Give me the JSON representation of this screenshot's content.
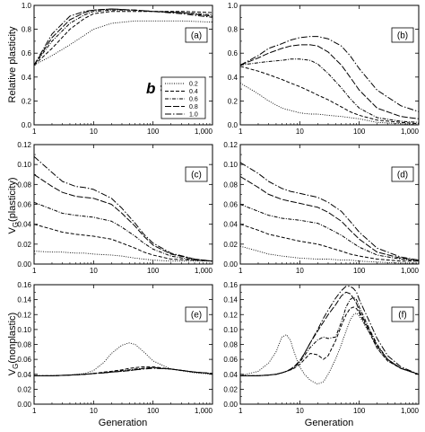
{
  "figure": {
    "legend_symbol": "b =",
    "legend_location": "panel (a), right of the (b) label",
    "axis_labels": {
      "row0_ylabel": "Relative plasticity",
      "row1_ylabel": "V_G(plasticity)",
      "row1_ylabel_main": "V",
      "row1_ylabel_sub": "G",
      "row1_ylabel_rest": "(plasticity)",
      "row2_ylabel": "V_G(nonplastic)",
      "row2_ylabel_main": "V",
      "row2_ylabel_sub": "G",
      "row2_ylabel_rest": "(nonplastic)",
      "xlabel": "Generation"
    }
  },
  "chart_data": [
    {
      "type": "line",
      "panel": "(a)",
      "xscale": "log",
      "xlim": [
        1,
        1000
      ],
      "ylim": [
        0,
        1.0
      ],
      "xticks": [
        "1",
        "10",
        "100",
        "1,000"
      ],
      "yticks": [
        "0.0",
        "0.2",
        "0.4",
        "0.6",
        "0.8",
        "1.0"
      ],
      "ylabel": "Relative plasticity",
      "xlabel": "",
      "x": [
        1,
        2,
        4,
        7,
        10,
        20,
        50,
        100,
        300,
        1000
      ],
      "series": [
        {
          "name": "0.2",
          "values": [
            0.5,
            0.58,
            0.67,
            0.75,
            0.8,
            0.85,
            0.87,
            0.87,
            0.87,
            0.86
          ]
        },
        {
          "name": "0.4",
          "values": [
            0.5,
            0.64,
            0.8,
            0.89,
            0.93,
            0.95,
            0.95,
            0.95,
            0.95,
            0.94
          ]
        },
        {
          "name": "0.6",
          "values": [
            0.5,
            0.7,
            0.85,
            0.92,
            0.95,
            0.96,
            0.96,
            0.95,
            0.94,
            0.92
          ]
        },
        {
          "name": "0.8",
          "values": [
            0.5,
            0.73,
            0.88,
            0.94,
            0.96,
            0.97,
            0.96,
            0.95,
            0.94,
            0.91
          ]
        },
        {
          "name": "1.0",
          "values": [
            0.5,
            0.76,
            0.91,
            0.95,
            0.96,
            0.97,
            0.96,
            0.95,
            0.93,
            0.9
          ]
        }
      ]
    },
    {
      "type": "line",
      "panel": "(b)",
      "xscale": "log",
      "xlim": [
        1,
        1000
      ],
      "ylim": [
        0,
        1.0
      ],
      "xticks": [
        "1",
        "10",
        "100",
        "1,000"
      ],
      "yticks": [
        "0.0",
        "0.2",
        "0.4",
        "0.6",
        "0.8",
        "1.0"
      ],
      "ylabel": "",
      "xlabel": "",
      "x": [
        1,
        2,
        3,
        5,
        7,
        10,
        15,
        20,
        30,
        50,
        70,
        100,
        200,
        500,
        1000
      ],
      "series": [
        {
          "name": "0.2",
          "values": [
            0.35,
            0.26,
            0.2,
            0.14,
            0.12,
            0.1,
            0.09,
            0.09,
            0.08,
            0.07,
            0.06,
            0.05,
            0.02,
            0.01,
            0.0
          ]
        },
        {
          "name": "0.4",
          "values": [
            0.49,
            0.45,
            0.42,
            0.38,
            0.35,
            0.32,
            0.28,
            0.25,
            0.21,
            0.15,
            0.11,
            0.08,
            0.04,
            0.02,
            0.01
          ]
        },
        {
          "name": "0.6",
          "values": [
            0.5,
            0.52,
            0.53,
            0.54,
            0.55,
            0.55,
            0.54,
            0.51,
            0.43,
            0.31,
            0.22,
            0.14,
            0.06,
            0.03,
            0.02
          ]
        },
        {
          "name": "0.8",
          "values": [
            0.5,
            0.56,
            0.6,
            0.64,
            0.66,
            0.67,
            0.67,
            0.66,
            0.61,
            0.5,
            0.4,
            0.29,
            0.14,
            0.07,
            0.05
          ]
        },
        {
          "name": "1.0",
          "values": [
            0.5,
            0.58,
            0.64,
            0.68,
            0.71,
            0.73,
            0.74,
            0.74,
            0.72,
            0.66,
            0.58,
            0.47,
            0.29,
            0.16,
            0.11
          ]
        }
      ]
    },
    {
      "type": "line",
      "panel": "(c)",
      "xscale": "log",
      "xlim": [
        1,
        1000
      ],
      "ylim": [
        0,
        0.12
      ],
      "xticks": [
        "1",
        "10",
        "100",
        "1,000"
      ],
      "yticks": [
        "0.00",
        "0.02",
        "0.04",
        "0.06",
        "0.08",
        "0.10",
        "0.12"
      ],
      "ylabel": "V_G(plasticity)",
      "xlabel": "",
      "x": [
        1,
        2,
        3,
        5,
        7,
        10,
        20,
        30,
        50,
        70,
        100,
        200,
        500,
        1000
      ],
      "series": [
        {
          "name": "0.2",
          "values": [
            0.013,
            0.012,
            0.012,
            0.011,
            0.011,
            0.01,
            0.009,
            0.008,
            0.006,
            0.005,
            0.004,
            0.003,
            0.003,
            0.003
          ]
        },
        {
          "name": "0.4",
          "values": [
            0.04,
            0.035,
            0.032,
            0.03,
            0.029,
            0.028,
            0.025,
            0.021,
            0.016,
            0.012,
            0.009,
            0.005,
            0.004,
            0.003
          ]
        },
        {
          "name": "0.6",
          "values": [
            0.062,
            0.055,
            0.051,
            0.049,
            0.048,
            0.047,
            0.043,
            0.037,
            0.028,
            0.021,
            0.015,
            0.008,
            0.004,
            0.003
          ]
        },
        {
          "name": "0.8",
          "values": [
            0.09,
            0.078,
            0.072,
            0.068,
            0.067,
            0.066,
            0.06,
            0.051,
            0.038,
            0.028,
            0.019,
            0.01,
            0.005,
            0.003
          ]
        },
        {
          "name": "1.0",
          "values": [
            0.108,
            0.092,
            0.083,
            0.078,
            0.077,
            0.075,
            0.066,
            0.056,
            0.041,
            0.03,
            0.021,
            0.011,
            0.005,
            0.003
          ]
        }
      ]
    },
    {
      "type": "line",
      "panel": "(d)",
      "xscale": "log",
      "xlim": [
        1,
        1000
      ],
      "ylim": [
        0,
        0.12
      ],
      "xticks": [
        "1",
        "10",
        "100",
        "1,000"
      ],
      "yticks": [
        "0.00",
        "0.02",
        "0.04",
        "0.06",
        "0.08",
        "0.10",
        "0.12"
      ],
      "ylabel": "",
      "xlabel": "",
      "x": [
        1,
        2,
        3,
        5,
        7,
        10,
        20,
        30,
        50,
        70,
        100,
        200,
        500,
        1000
      ],
      "series": [
        {
          "name": "0.2",
          "values": [
            0.018,
            0.013,
            0.01,
            0.008,
            0.007,
            0.006,
            0.005,
            0.005,
            0.004,
            0.004,
            0.003,
            0.002,
            0.001,
            0.001
          ]
        },
        {
          "name": "0.4",
          "values": [
            0.04,
            0.034,
            0.03,
            0.027,
            0.025,
            0.023,
            0.02,
            0.017,
            0.013,
            0.01,
            0.008,
            0.005,
            0.003,
            0.003
          ]
        },
        {
          "name": "0.6",
          "values": [
            0.06,
            0.053,
            0.049,
            0.046,
            0.045,
            0.044,
            0.041,
            0.036,
            0.029,
            0.023,
            0.017,
            0.009,
            0.005,
            0.003
          ]
        },
        {
          "name": "0.8",
          "values": [
            0.088,
            0.077,
            0.07,
            0.065,
            0.063,
            0.061,
            0.057,
            0.052,
            0.043,
            0.034,
            0.025,
            0.012,
            0.006,
            0.004
          ]
        },
        {
          "name": "1.0",
          "values": [
            0.102,
            0.091,
            0.083,
            0.076,
            0.073,
            0.071,
            0.067,
            0.062,
            0.053,
            0.043,
            0.032,
            0.016,
            0.007,
            0.004
          ]
        }
      ]
    },
    {
      "type": "line",
      "panel": "(e)",
      "xscale": "log",
      "xlim": [
        1,
        1000
      ],
      "ylim": [
        0,
        0.16
      ],
      "xticks": [
        "1",
        "10",
        "100",
        "1,000"
      ],
      "yticks": [
        "0.00",
        "0.02",
        "0.04",
        "0.06",
        "0.08",
        "0.10",
        "0.12",
        "0.14",
        "0.16"
      ],
      "ylabel": "V_G(nonplastic)",
      "xlabel": "Generation",
      "x": [
        1,
        2,
        4,
        7,
        10,
        15,
        20,
        30,
        40,
        50,
        70,
        100,
        200,
        500,
        1000
      ],
      "series": [
        {
          "name": "0.2",
          "values": [
            0.038,
            0.038,
            0.039,
            0.041,
            0.045,
            0.056,
            0.068,
            0.079,
            0.082,
            0.08,
            0.07,
            0.058,
            0.047,
            0.042,
            0.04
          ]
        },
        {
          "name": "0.4",
          "values": [
            0.038,
            0.038,
            0.039,
            0.04,
            0.041,
            0.043,
            0.044,
            0.046,
            0.048,
            0.049,
            0.05,
            0.05,
            0.047,
            0.043,
            0.041
          ]
        },
        {
          "name": "0.6",
          "values": [
            0.038,
            0.038,
            0.039,
            0.04,
            0.041,
            0.042,
            0.043,
            0.045,
            0.046,
            0.047,
            0.048,
            0.049,
            0.047,
            0.043,
            0.041
          ]
        },
        {
          "name": "0.8",
          "values": [
            0.038,
            0.038,
            0.039,
            0.04,
            0.041,
            0.042,
            0.043,
            0.044,
            0.045,
            0.046,
            0.048,
            0.049,
            0.047,
            0.043,
            0.041
          ]
        },
        {
          "name": "1.0",
          "values": [
            0.038,
            0.038,
            0.039,
            0.04,
            0.041,
            0.042,
            0.043,
            0.044,
            0.045,
            0.046,
            0.047,
            0.048,
            0.047,
            0.043,
            0.041
          ]
        }
      ]
    },
    {
      "type": "line",
      "panel": "(f)",
      "xscale": "log",
      "xlim": [
        1,
        1000
      ],
      "ylim": [
        0,
        0.16
      ],
      "xticks": [
        "1",
        "10",
        "100",
        "1,000"
      ],
      "yticks": [
        "0.00",
        "0.02",
        "0.04",
        "0.06",
        "0.08",
        "0.10",
        "0.12",
        "0.14",
        "0.16"
      ],
      "ylabel": "",
      "xlabel": "Generation",
      "x": [
        1,
        2,
        3,
        4,
        5,
        6,
        7,
        8,
        10,
        12,
        15,
        20,
        25,
        30,
        40,
        50,
        60,
        70,
        80,
        90,
        100,
        150,
        200,
        300,
        500,
        1000
      ],
      "series": [
        {
          "name": "0.2",
          "values": [
            0.038,
            0.044,
            0.055,
            0.07,
            0.09,
            0.093,
            0.085,
            0.07,
            0.05,
            0.04,
            0.032,
            0.027,
            0.03,
            0.04,
            0.06,
            0.08,
            0.098,
            0.112,
            0.12,
            0.122,
            0.118,
            0.095,
            0.075,
            0.058,
            0.048,
            0.04
          ]
        },
        {
          "name": "0.4",
          "values": [
            0.038,
            0.038,
            0.039,
            0.04,
            0.042,
            0.044,
            0.046,
            0.048,
            0.053,
            0.06,
            0.068,
            0.066,
            0.06,
            0.065,
            0.085,
            0.105,
            0.12,
            0.128,
            0.13,
            0.128,
            0.122,
            0.095,
            0.075,
            0.058,
            0.048,
            0.04
          ]
        },
        {
          "name": "0.6",
          "values": [
            0.038,
            0.038,
            0.039,
            0.04,
            0.042,
            0.044,
            0.046,
            0.049,
            0.056,
            0.065,
            0.076,
            0.086,
            0.09,
            0.088,
            0.09,
            0.11,
            0.13,
            0.14,
            0.143,
            0.14,
            0.13,
            0.1,
            0.08,
            0.06,
            0.048,
            0.04
          ]
        },
        {
          "name": "0.8",
          "values": [
            0.038,
            0.038,
            0.039,
            0.04,
            0.042,
            0.044,
            0.047,
            0.05,
            0.058,
            0.068,
            0.082,
            0.098,
            0.11,
            0.12,
            0.133,
            0.145,
            0.15,
            0.148,
            0.142,
            0.135,
            0.125,
            0.098,
            0.078,
            0.06,
            0.048,
            0.04
          ]
        },
        {
          "name": "1.0",
          "values": [
            0.038,
            0.038,
            0.039,
            0.04,
            0.042,
            0.044,
            0.047,
            0.05,
            0.058,
            0.068,
            0.082,
            0.1,
            0.115,
            0.126,
            0.142,
            0.152,
            0.158,
            0.158,
            0.155,
            0.15,
            0.14,
            0.11,
            0.088,
            0.065,
            0.05,
            0.04
          ]
        }
      ]
    }
  ]
}
